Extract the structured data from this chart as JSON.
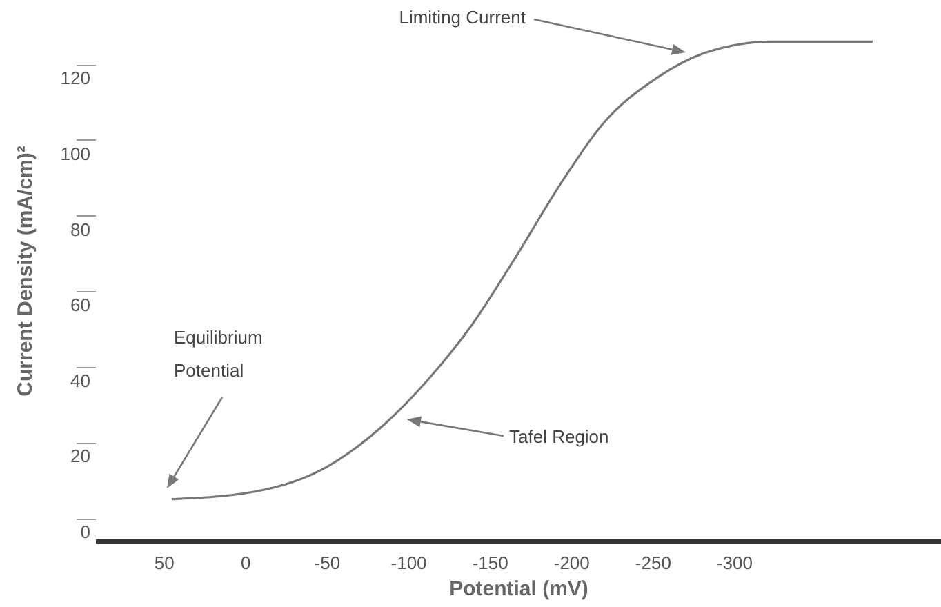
{
  "chart_data": {
    "type": "line",
    "xlabel": "Potential (mV)",
    "ylabel": "Current Density (mA/cm)²",
    "x": [
      45,
      -6,
      -50,
      -86,
      -112,
      -139,
      -166,
      -193,
      -219,
      -253,
      -282,
      -323,
      -385
    ],
    "series": [
      {
        "color": "#777777",
        "values": [
          5,
          7,
          13.5,
          25,
          36.5,
          51,
          69,
          88,
          104,
          116.5,
          123,
          126,
          126
        ]
      }
    ],
    "xlim": [
      92,
      -427
    ],
    "xticks": [
      50,
      0,
      -50,
      -100,
      -150,
      -200,
      -250,
      -300
    ],
    "ylim": [
      -6,
      137
    ],
    "yticks": [
      0,
      20,
      40,
      60,
      80,
      100,
      120
    ],
    "grid": false,
    "marker": "none",
    "line_style": "solid",
    "annotations": [
      "Limiting Current",
      "Tafel Region",
      "Equilibrium Potential"
    ]
  }
}
